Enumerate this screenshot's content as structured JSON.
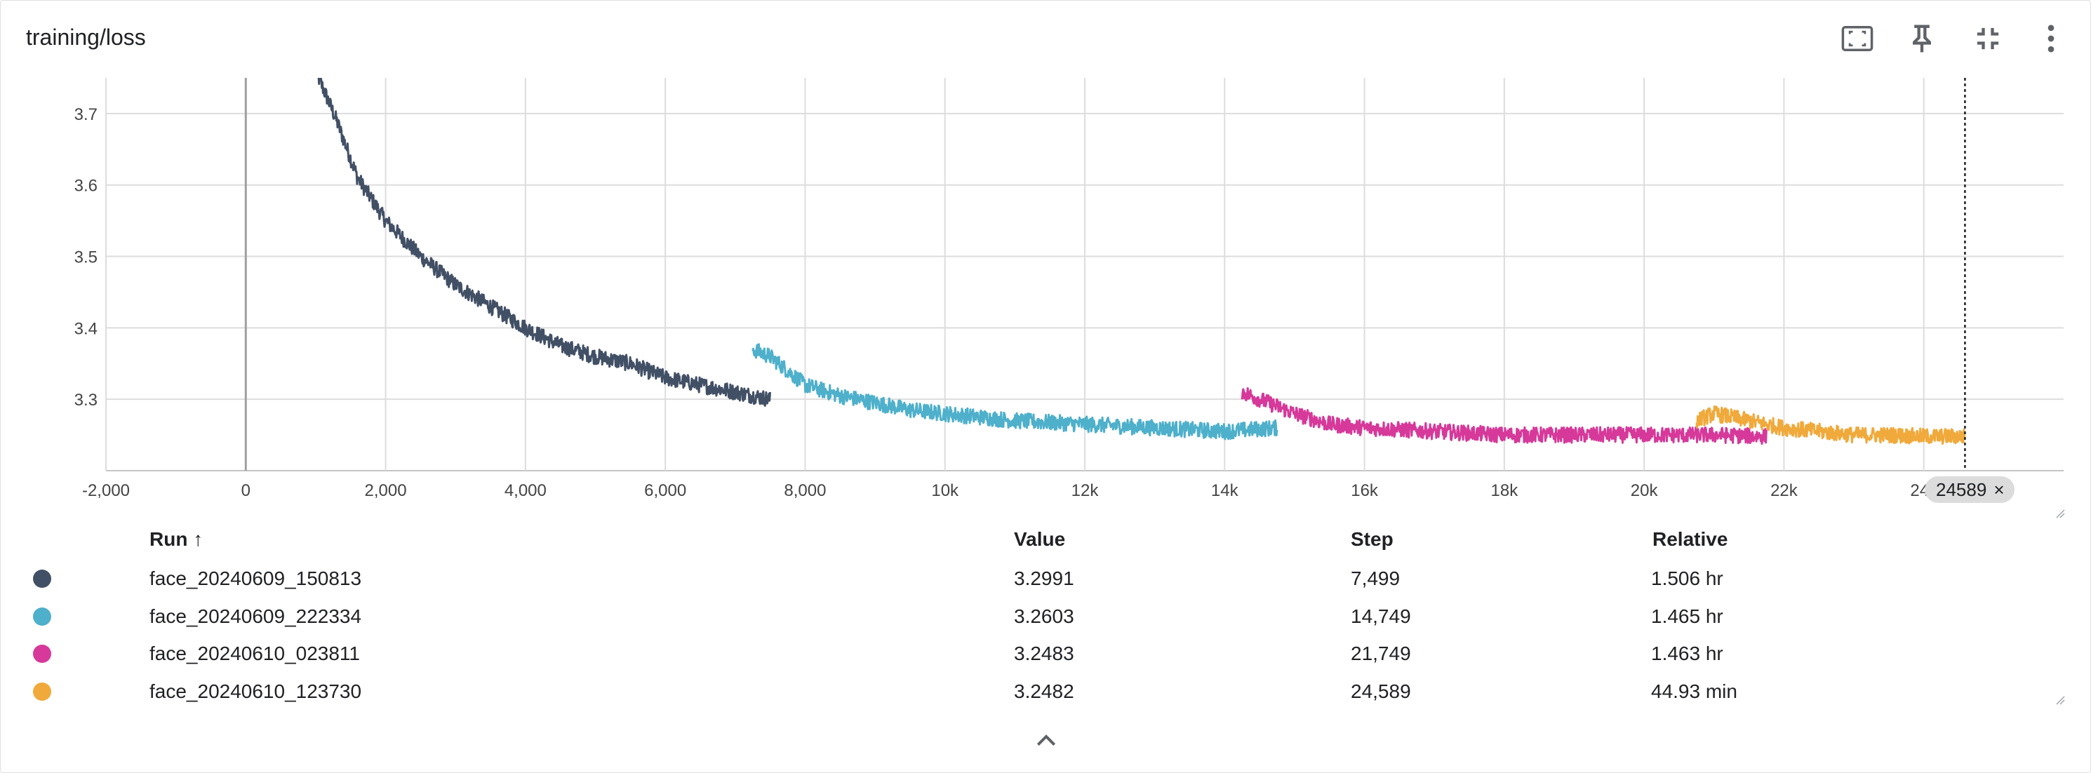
{
  "card_title": "training/loss",
  "toolbar": {
    "fit_icon": "fit-domain-icon",
    "pin_icon": "pin-icon",
    "collapse_icon": "collapse-icon",
    "more_icon": "more-vert-icon"
  },
  "step_badge": {
    "value": "24589",
    "close": "×"
  },
  "table": {
    "headers": {
      "run": "Run ↑",
      "value": "Value",
      "step": "Step",
      "relative": "Relative"
    },
    "rows": [
      {
        "color": "#425066",
        "run": "face_20240609_150813",
        "value": "3.2991",
        "step": "7,499",
        "relative": "1.506 hr"
      },
      {
        "color": "#4eb0cb",
        "run": "face_20240609_222334",
        "value": "3.2603",
        "step": "14,749",
        "relative": "1.465 hr"
      },
      {
        "color": "#d6399a",
        "run": "face_20240610_023811",
        "value": "3.2483",
        "step": "21,749",
        "relative": "1.463 hr"
      },
      {
        "color": "#f0a93b",
        "run": "face_20240610_123730",
        "value": "3.2482",
        "step": "24,589",
        "relative": "44.93 min"
      }
    ],
    "expand_icon": "chevron-up-icon"
  },
  "chart_data": {
    "type": "line",
    "title": "training/loss",
    "xlabel": "",
    "ylabel": "",
    "xlim": [
      -2000,
      26000
    ],
    "ylim": [
      3.2,
      3.75
    ],
    "x_ticks": [
      -2000,
      0,
      2000,
      4000,
      6000,
      8000,
      10000,
      12000,
      14000,
      16000,
      18000,
      20000,
      22000,
      24000
    ],
    "x_tick_labels": [
      "-2,000",
      "0",
      "2,000",
      "4,000",
      "6,000",
      "8,000",
      "10k",
      "12k",
      "14k",
      "16k",
      "18k",
      "20k",
      "22k",
      "24k"
    ],
    "y_ticks": [
      3.3,
      3.4,
      3.5,
      3.6,
      3.7
    ],
    "y_tick_labels": [
      "3.3",
      "3.4",
      "3.5",
      "3.6",
      "3.7"
    ],
    "grid": true,
    "cursor_step": 24589,
    "series": [
      {
        "name": "face_20240609_150813",
        "color": "#425066",
        "x": [
          1000,
          1300,
          1600,
          2000,
          2500,
          3000,
          3500,
          4000,
          4500,
          5000,
          5500,
          6000,
          6500,
          7000,
          7499
        ],
        "y": [
          3.76,
          3.69,
          3.61,
          3.55,
          3.5,
          3.46,
          3.43,
          3.4,
          3.375,
          3.36,
          3.35,
          3.33,
          3.32,
          3.31,
          3.3
        ]
      },
      {
        "name": "face_20240609_222334",
        "color": "#4eb0cb",
        "x": [
          7250,
          7500,
          8000,
          8500,
          9000,
          9500,
          10000,
          11000,
          12000,
          13000,
          14000,
          14749
        ],
        "y": [
          3.37,
          3.36,
          3.32,
          3.305,
          3.295,
          3.285,
          3.28,
          3.27,
          3.265,
          3.26,
          3.255,
          3.26
        ]
      },
      {
        "name": "face_20240610_023811",
        "color": "#d6399a",
        "x": [
          14250,
          14500,
          15000,
          15500,
          16000,
          17000,
          18000,
          19000,
          20000,
          21000,
          21749
        ],
        "y": [
          3.31,
          3.3,
          3.28,
          3.265,
          3.26,
          3.255,
          3.25,
          3.25,
          3.25,
          3.25,
          3.248
        ]
      },
      {
        "name": "face_20240610_123730",
        "color": "#f0a93b",
        "x": [
          20750,
          21000,
          21500,
          22000,
          22500,
          23000,
          23500,
          24000,
          24589
        ],
        "y": [
          3.27,
          3.28,
          3.27,
          3.26,
          3.255,
          3.25,
          3.25,
          3.248,
          3.248
        ]
      }
    ]
  }
}
